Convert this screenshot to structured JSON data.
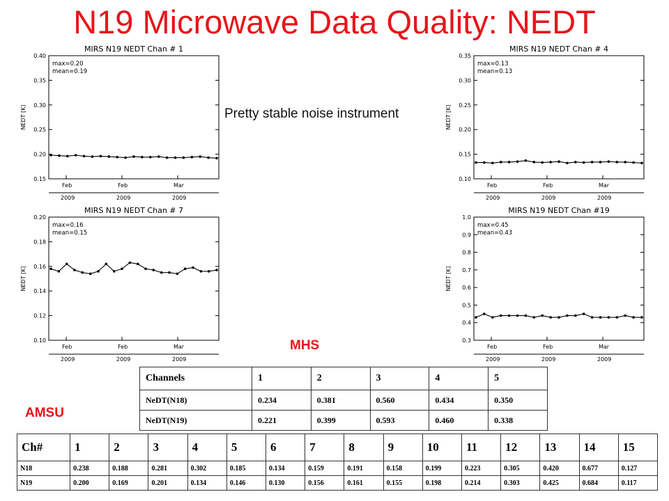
{
  "title": "N19 Microwave Data Quality: NEDT",
  "note": "Pretty stable noise instrument",
  "mhs_label": "MHS",
  "amsu_label": "AMSU",
  "chart_data": [
    {
      "type": "line",
      "title": "MIRS N19 NEDT Chan # 1",
      "ylabel": "NEDT [K]",
      "stats": [
        "max=0.20",
        "mean=0.19"
      ],
      "ylim": [
        0.15,
        0.4
      ],
      "yticks": [
        "0.15",
        "0.20",
        "0.25",
        "0.30",
        "0.35",
        "0.40"
      ],
      "xticks": [
        {
          "m": "Feb",
          "y": "2009"
        },
        {
          "m": "Feb",
          "y": "2009"
        },
        {
          "m": "Mar",
          "y": "2009"
        }
      ],
      "values": [
        0.198,
        0.197,
        0.196,
        0.198,
        0.196,
        0.195,
        0.196,
        0.195,
        0.194,
        0.193,
        0.195,
        0.194,
        0.194,
        0.195,
        0.193,
        0.193,
        0.193,
        0.194,
        0.195,
        0.193,
        0.192
      ]
    },
    {
      "type": "line",
      "title": "MIRS N19 NEDT Chan # 4",
      "ylabel": "NEDT [K]",
      "stats": [
        "max=0.13",
        "mean=0.13"
      ],
      "ylim": [
        0.1,
        0.35
      ],
      "yticks": [
        "0.10",
        "0.15",
        "0.20",
        "0.25",
        "0.30",
        "0.35"
      ],
      "xticks": [
        {
          "m": "Feb",
          "y": "2009"
        },
        {
          "m": "Feb",
          "y": "2009"
        },
        {
          "m": "Mar",
          "y": "2009"
        }
      ],
      "values": [
        0.133,
        0.133,
        0.132,
        0.134,
        0.134,
        0.135,
        0.137,
        0.134,
        0.133,
        0.134,
        0.135,
        0.132,
        0.134,
        0.133,
        0.134,
        0.134,
        0.135,
        0.134,
        0.134,
        0.133,
        0.132
      ]
    },
    {
      "type": "line",
      "title": "MIRS N19 NEDT Chan # 7",
      "ylabel": "NEDT [K]",
      "stats": [
        "max=0.16",
        "mean=0.15"
      ],
      "ylim": [
        0.1,
        0.2
      ],
      "yticks": [
        "0.10",
        "0.12",
        "0.14",
        "0.16",
        "0.18",
        "0.20"
      ],
      "xticks": [
        {
          "m": "Feb",
          "y": "2009"
        },
        {
          "m": "Feb",
          "y": "2009"
        },
        {
          "m": "Mar",
          "y": "2009"
        }
      ],
      "values": [
        0.158,
        0.156,
        0.162,
        0.157,
        0.155,
        0.154,
        0.156,
        0.162,
        0.156,
        0.158,
        0.163,
        0.162,
        0.158,
        0.157,
        0.155,
        0.155,
        0.154,
        0.158,
        0.159,
        0.156,
        0.156,
        0.157
      ]
    },
    {
      "type": "line",
      "title": "MIRS N19 NEDT Chan #19",
      "ylabel": "NEDT [K]",
      "stats": [
        "max=0.45",
        "mean=0.43"
      ],
      "ylim": [
        0.3,
        1.0
      ],
      "yticks": [
        "0.3",
        "0.4",
        "0.5",
        "0.6",
        "0.7",
        "0.8",
        "0.9",
        "1.0"
      ],
      "xticks": [
        {
          "m": "Feb",
          "y": "2009"
        },
        {
          "m": "Feb",
          "y": "2009"
        },
        {
          "m": "Mar",
          "y": "2009"
        }
      ],
      "values": [
        0.43,
        0.45,
        0.43,
        0.44,
        0.44,
        0.44,
        0.44,
        0.43,
        0.44,
        0.43,
        0.43,
        0.44,
        0.44,
        0.45,
        0.43,
        0.43,
        0.43,
        0.43,
        0.44,
        0.43,
        0.43
      ]
    }
  ],
  "mhs_table": {
    "header": [
      "Channels",
      "1",
      "2",
      "3",
      "4",
      "5"
    ],
    "rows": [
      [
        "NeDT(N18)",
        "0.234",
        "0.381",
        "0.560",
        "0.434",
        "0.350"
      ],
      [
        "NeDT(N19)",
        "0.221",
        "0.399",
        "0.593",
        "0.460",
        "0.338"
      ]
    ]
  },
  "amsu_table": {
    "header": [
      "Ch#",
      "1",
      "2",
      "3",
      "4",
      "5",
      "6",
      "7",
      "8",
      "9",
      "10",
      "11",
      "12",
      "13",
      "14",
      "15"
    ],
    "rows": [
      [
        "N18",
        "0.238",
        "0.188",
        "0.281",
        "0.302",
        "0.185",
        "0.134",
        "0.159",
        "0.191",
        "0.158",
        "0.199",
        "0.223",
        "0.305",
        "0.420",
        "0.677",
        "0.127"
      ],
      [
        "N19",
        "0.200",
        "0.169",
        "0.201",
        "0.134",
        "0.146",
        "0.130",
        "0.156",
        "0.161",
        "0.155",
        "0.198",
        "0.214",
        "0.303",
        "0.425",
        "0.684",
        "0.117"
      ]
    ]
  }
}
